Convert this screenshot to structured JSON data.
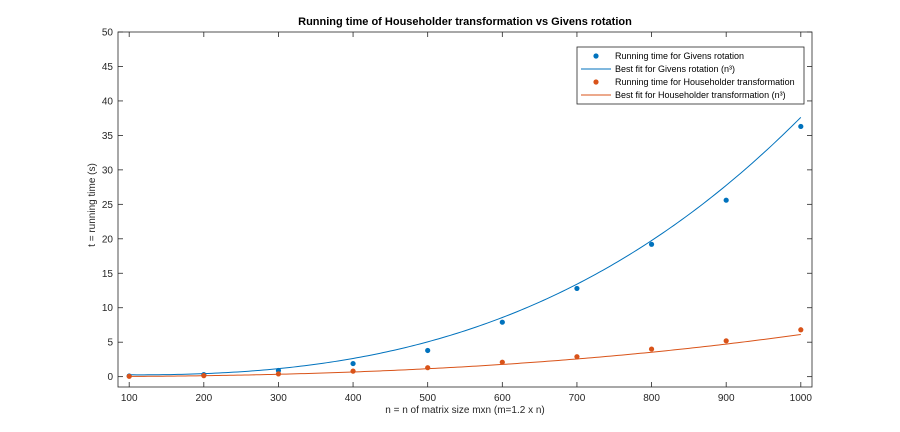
{
  "chart_data": {
    "type": "scatter",
    "title": "Running time of Householder transformation vs Givens rotation",
    "xlabel": "n = n of matrix size mxn (m=1.2 x n)",
    "ylabel": "t = running time (s)",
    "xlim": [
      85,
      1015
    ],
    "ylim": [
      -1.5,
      50
    ],
    "xticks": [
      100,
      200,
      300,
      400,
      500,
      600,
      700,
      800,
      900,
      1000
    ],
    "yticks": [
      0,
      5,
      10,
      15,
      20,
      25,
      30,
      35,
      40,
      45,
      50
    ],
    "grid": false,
    "legend_position": "top-right",
    "x": [
      100,
      200,
      300,
      400,
      500,
      600,
      700,
      800,
      900,
      1000
    ],
    "series": [
      {
        "name": "Running time for Givens rotation",
        "style": "points",
        "color": "#0072BD",
        "values": [
          0.1,
          0.3,
          0.9,
          1.9,
          3.8,
          7.9,
          12.8,
          19.2,
          25.6,
          36.3
        ]
      },
      {
        "name": "Best fit for Givens rotation (n³)",
        "style": "line",
        "color": "#0072BD",
        "fit": "cubic",
        "coefficients": [
          3.1e-08,
          9.5e-06,
          -0.00336,
          0.48
        ]
      },
      {
        "name": "Running time for Householder transformation",
        "style": "points",
        "color": "#D95319",
        "values": [
          0.05,
          0.15,
          0.4,
          0.8,
          1.3,
          2.1,
          2.9,
          4.0,
          5.2,
          6.8
        ]
      },
      {
        "name": "Best fit for Householder transformation (n³)",
        "style": "line",
        "color": "#D95319",
        "fit": "cubic",
        "coefficients": [
          2.6e-09,
          3.8e-06,
          -0.0003,
          0.024
        ]
      }
    ]
  }
}
